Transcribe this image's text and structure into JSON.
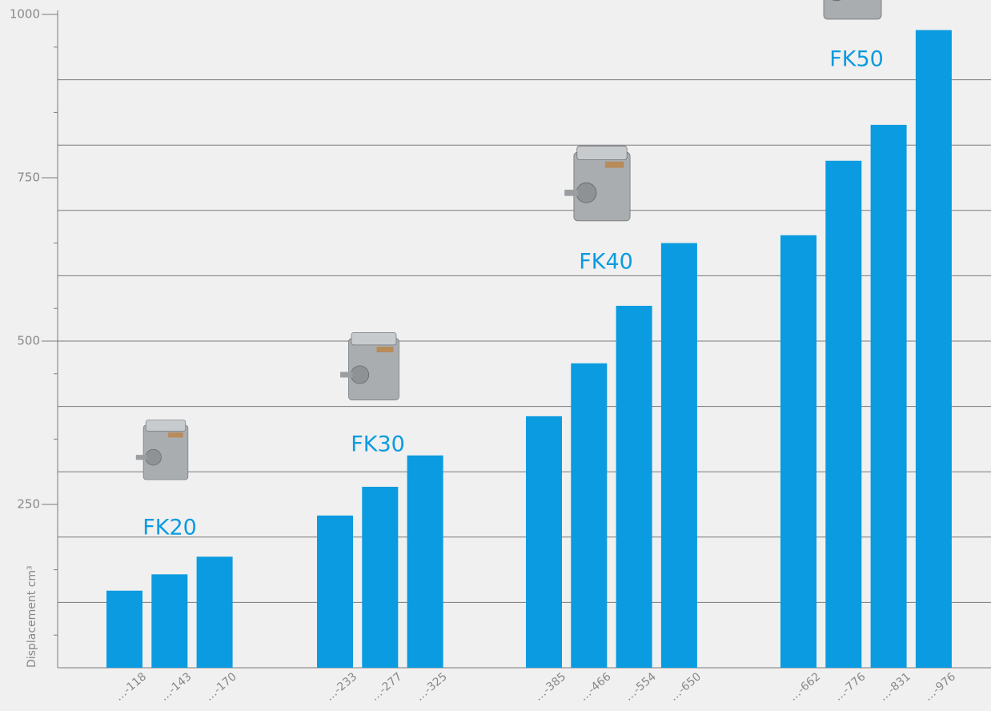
{
  "chart_data": {
    "type": "bar",
    "y_label": "Displacement cm³",
    "color": "#0a9be0",
    "ylim": [
      0,
      1000
    ],
    "yticks": [
      250,
      500,
      750,
      1000
    ],
    "grid_lines": [
      100,
      200,
      300,
      400,
      500,
      600,
      700,
      800,
      900
    ],
    "groups": [
      {
        "name": "FK20",
        "categories": [
          "…-118",
          "…-143",
          "…-170"
        ],
        "values": [
          118,
          143,
          170
        ]
      },
      {
        "name": "FK30",
        "categories": [
          "…-233",
          "…-277",
          "…-325"
        ],
        "values": [
          233,
          277,
          325
        ]
      },
      {
        "name": "FK40",
        "categories": [
          "…-385",
          "…-466",
          "…-554",
          "…-650"
        ],
        "values": [
          385,
          466,
          554,
          650
        ]
      },
      {
        "name": "FK50",
        "categories": [
          "…-662",
          "…-776",
          "…-831",
          "…-976"
        ],
        "values": [
          662,
          776,
          831,
          976
        ]
      }
    ]
  }
}
